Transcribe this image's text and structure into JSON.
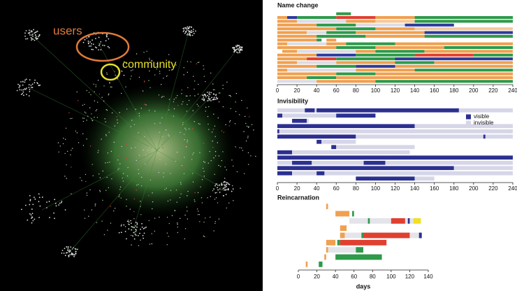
{
  "chart_data": [
    {
      "type": "network",
      "annotations": [
        {
          "text": "users",
          "color": "#e07a3a"
        },
        {
          "text": "community",
          "color": "#e6e02a"
        }
      ]
    },
    {
      "type": "timeline",
      "title": "Name change",
      "xlim": [
        0,
        240
      ],
      "xticks": [
        0,
        20,
        40,
        60,
        80,
        100,
        120,
        140,
        160,
        180,
        200,
        220,
        240
      ],
      "rows": [
        [
          {
            "start": 60,
            "end": 75,
            "color": "#2e9a4a"
          }
        ],
        [
          {
            "start": 0,
            "end": 10,
            "color": "#f0a050"
          },
          {
            "start": 10,
            "end": 20,
            "color": "#2e3b9c"
          },
          {
            "start": 20,
            "end": 60,
            "color": "#2e9a4a"
          },
          {
            "start": 60,
            "end": 100,
            "color": "#e04030"
          },
          {
            "start": 100,
            "end": 140,
            "color": "#f0a050"
          },
          {
            "start": 140,
            "end": 240,
            "color": "#2e9a4a"
          }
        ],
        [
          {
            "start": 0,
            "end": 20,
            "color": "#f0a050"
          },
          {
            "start": 20,
            "end": 70,
            "color": "#dcdce6"
          },
          {
            "start": 70,
            "end": 100,
            "color": "#f0a050"
          },
          {
            "start": 100,
            "end": 140,
            "color": "#f5c89a"
          },
          {
            "start": 140,
            "end": 240,
            "color": "#2e9a4a"
          }
        ],
        [
          {
            "start": 0,
            "end": 40,
            "color": "#f0a050"
          },
          {
            "start": 40,
            "end": 80,
            "color": "#2e9a4a"
          },
          {
            "start": 80,
            "end": 130,
            "color": "#dcdce6"
          },
          {
            "start": 130,
            "end": 180,
            "color": "#2e3b9c"
          }
        ],
        [
          {
            "start": 0,
            "end": 60,
            "color": "#f0a050"
          },
          {
            "start": 60,
            "end": 100,
            "color": "#2e9a4a"
          },
          {
            "start": 100,
            "end": 140,
            "color": "#f0a050"
          },
          {
            "start": 140,
            "end": 240,
            "color": "#f5c89a"
          }
        ],
        [
          {
            "start": 0,
            "end": 30,
            "color": "#f0a050"
          },
          {
            "start": 30,
            "end": 50,
            "color": "#dcdce6"
          },
          {
            "start": 50,
            "end": 80,
            "color": "#2e9a4a"
          },
          {
            "start": 80,
            "end": 150,
            "color": "#f0a050"
          },
          {
            "start": 150,
            "end": 240,
            "color": "#2e3b9c"
          }
        ],
        [
          {
            "start": 0,
            "end": 40,
            "color": "#f0a050"
          },
          {
            "start": 40,
            "end": 90,
            "color": "#2e9a4a"
          },
          {
            "start": 90,
            "end": 150,
            "color": "#f0a050"
          },
          {
            "start": 150,
            "end": 240,
            "color": "#2e9a4a"
          }
        ],
        [
          {
            "start": 0,
            "end": 40,
            "color": "#f0a050"
          },
          {
            "start": 40,
            "end": 45,
            "color": "#2e9a4a"
          },
          {
            "start": 50,
            "end": 60,
            "color": "#f0a050"
          }
        ],
        [
          {
            "start": 0,
            "end": 10,
            "color": "#f0a050"
          },
          {
            "start": 10,
            "end": 50,
            "color": "#dcdce6"
          },
          {
            "start": 50,
            "end": 70,
            "color": "#f0a050"
          },
          {
            "start": 70,
            "end": 120,
            "color": "#2e9a4a"
          },
          {
            "start": 120,
            "end": 240,
            "color": "#f0a050"
          }
        ],
        [
          {
            "start": 0,
            "end": 60,
            "color": "#f0a050"
          },
          {
            "start": 60,
            "end": 100,
            "color": "#2e9a4a"
          },
          {
            "start": 100,
            "end": 170,
            "color": "#f0a050"
          },
          {
            "start": 170,
            "end": 240,
            "color": "#2e9a4a"
          }
        ],
        [
          {
            "start": 5,
            "end": 20,
            "color": "#f0a050"
          },
          {
            "start": 20,
            "end": 80,
            "color": "#dcdce6"
          },
          {
            "start": 80,
            "end": 100,
            "color": "#f0a050"
          },
          {
            "start": 100,
            "end": 150,
            "color": "#2e9a4a"
          },
          {
            "start": 150,
            "end": 240,
            "color": "#f0a050"
          }
        ],
        [
          {
            "start": 0,
            "end": 40,
            "color": "#f0a050"
          },
          {
            "start": 40,
            "end": 80,
            "color": "#2e3b9c"
          },
          {
            "start": 80,
            "end": 140,
            "color": "#2e9a4a"
          },
          {
            "start": 140,
            "end": 200,
            "color": "#e04030"
          },
          {
            "start": 200,
            "end": 240,
            "color": "#2e9a4a"
          }
        ],
        [
          {
            "start": 0,
            "end": 30,
            "color": "#f0a050"
          },
          {
            "start": 30,
            "end": 60,
            "color": "#e04030"
          },
          {
            "start": 60,
            "end": 120,
            "color": "#2e9a4a"
          },
          {
            "start": 120,
            "end": 240,
            "color": "#2e3b9c"
          }
        ],
        [
          {
            "start": 0,
            "end": 20,
            "color": "#f0a050"
          },
          {
            "start": 20,
            "end": 60,
            "color": "#dcdce6"
          },
          {
            "start": 60,
            "end": 120,
            "color": "#f0a050"
          },
          {
            "start": 120,
            "end": 160,
            "color": "#2e9a4a"
          },
          {
            "start": 160,
            "end": 240,
            "color": "#f0a050"
          }
        ],
        [
          {
            "start": 0,
            "end": 40,
            "color": "#f0a050"
          },
          {
            "start": 40,
            "end": 80,
            "color": "#2e9a4a"
          },
          {
            "start": 80,
            "end": 120,
            "color": "#2e3b9c"
          },
          {
            "start": 120,
            "end": 240,
            "color": "#f0a050"
          }
        ],
        [
          {
            "start": 0,
            "end": 10,
            "color": "#f0a050"
          },
          {
            "start": 10,
            "end": 80,
            "color": "#dcdce6"
          },
          {
            "start": 80,
            "end": 140,
            "color": "#f0a050"
          },
          {
            "start": 140,
            "end": 240,
            "color": "#2e9a4a"
          }
        ],
        [
          {
            "start": 0,
            "end": 60,
            "color": "#f0a050"
          },
          {
            "start": 60,
            "end": 100,
            "color": "#2e9a4a"
          },
          {
            "start": 100,
            "end": 240,
            "color": "#f0a050"
          }
        ],
        [
          {
            "start": 0,
            "end": 30,
            "color": "#f0a050"
          },
          {
            "start": 30,
            "end": 60,
            "color": "#2e9a4a"
          },
          {
            "start": 60,
            "end": 240,
            "color": "#f0a050"
          }
        ],
        [
          {
            "start": 0,
            "end": 40,
            "color": "#dcdce6"
          },
          {
            "start": 40,
            "end": 100,
            "color": "#f0a050"
          },
          {
            "start": 100,
            "end": 240,
            "color": "#2e9a4a"
          }
        ]
      ]
    },
    {
      "type": "timeline",
      "title": "Invisibility",
      "xlim": [
        0,
        240
      ],
      "xticks": [
        0,
        20,
        40,
        60,
        80,
        100,
        120,
        140,
        160,
        180,
        200,
        220,
        240
      ],
      "legend": [
        {
          "name": "visible",
          "color": "#2b3090"
        },
        {
          "name": "invisible",
          "color": "#d6d6e8"
        }
      ],
      "rows": [
        [
          {
            "start": 0,
            "end": 240,
            "color": "#d6d6e8"
          },
          {
            "start": 28,
            "end": 38,
            "color": "#2b3090"
          },
          {
            "start": 40,
            "end": 185,
            "color": "#2b3090"
          }
        ],
        [
          {
            "start": 0,
            "end": 100,
            "color": "#d6d6e8"
          },
          {
            "start": 0,
            "end": 5,
            "color": "#2b3090"
          },
          {
            "start": 60,
            "end": 100,
            "color": "#2b3090"
          }
        ],
        [
          {
            "start": 15,
            "end": 30,
            "color": "#2b3090"
          },
          {
            "start": 30,
            "end": 32,
            "color": "#d6d6e8"
          }
        ],
        [
          {
            "start": 0,
            "end": 140,
            "color": "#2b3090"
          },
          {
            "start": 140,
            "end": 240,
            "color": "#d6d6e8"
          }
        ],
        [
          {
            "start": 0,
            "end": 2,
            "color": "#2b3090"
          },
          {
            "start": 2,
            "end": 240,
            "color": "#d6d6e8"
          }
        ],
        [
          {
            "start": 0,
            "end": 80,
            "color": "#2b3090"
          },
          {
            "start": 80,
            "end": 240,
            "color": "#d6d6e8"
          },
          {
            "start": 210,
            "end": 212,
            "color": "#2b3090"
          }
        ],
        [
          {
            "start": 40,
            "end": 45,
            "color": "#2b3090"
          },
          {
            "start": 45,
            "end": 80,
            "color": "#d6d6e8"
          }
        ],
        [
          {
            "start": 55,
            "end": 60,
            "color": "#2b3090"
          },
          {
            "start": 60,
            "end": 140,
            "color": "#d6d6e8"
          }
        ],
        [
          {
            "start": 0,
            "end": 15,
            "color": "#2b3090"
          },
          {
            "start": 15,
            "end": 135,
            "color": "#d6d6e8"
          }
        ],
        [
          {
            "start": 0,
            "end": 240,
            "color": "#2b3090"
          }
        ],
        [
          {
            "start": 0,
            "end": 240,
            "color": "#d6d6e8"
          },
          {
            "start": 15,
            "end": 35,
            "color": "#2b3090"
          },
          {
            "start": 88,
            "end": 110,
            "color": "#2b3090"
          }
        ],
        [
          {
            "start": 0,
            "end": 180,
            "color": "#2b3090"
          },
          {
            "start": 180,
            "end": 240,
            "color": "#d6d6e8"
          }
        ],
        [
          {
            "start": 0,
            "end": 15,
            "color": "#2b3090"
          },
          {
            "start": 15,
            "end": 40,
            "color": "#d6d6e8"
          },
          {
            "start": 40,
            "end": 48,
            "color": "#2b3090"
          },
          {
            "start": 48,
            "end": 240,
            "color": "#d6d6e8"
          }
        ],
        [
          {
            "start": 80,
            "end": 140,
            "color": "#2b3090"
          },
          {
            "start": 140,
            "end": 160,
            "color": "#d6d6e8"
          }
        ]
      ]
    },
    {
      "type": "timeline",
      "title": "Reincarnation",
      "xlabel": "days",
      "xlim": [
        0,
        140
      ],
      "xticks": [
        0,
        20,
        40,
        60,
        80,
        100,
        120,
        140
      ],
      "rows": [
        [
          {
            "start": 30,
            "end": 32,
            "color": "#f0a050"
          }
        ],
        [
          {
            "start": 40,
            "end": 55,
            "color": "#f0a050"
          },
          {
            "start": 58,
            "end": 60,
            "color": "#2e9a4a"
          }
        ],
        [
          {
            "start": 55,
            "end": 130,
            "color": "#e4e4ea"
          },
          {
            "start": 75,
            "end": 77,
            "color": "#2e9a4a"
          },
          {
            "start": 100,
            "end": 115,
            "color": "#e04030"
          },
          {
            "start": 118,
            "end": 120,
            "color": "#2b3090"
          },
          {
            "start": 124,
            "end": 132,
            "color": "#f2e020"
          }
        ],
        [
          {
            "start": 45,
            "end": 52,
            "color": "#f0a050"
          }
        ],
        [
          {
            "start": 45,
            "end": 130,
            "color": "#e4e4ea"
          },
          {
            "start": 45,
            "end": 50,
            "color": "#f0a050"
          },
          {
            "start": 68,
            "end": 70,
            "color": "#2e9a4a"
          },
          {
            "start": 70,
            "end": 120,
            "color": "#e04030"
          },
          {
            "start": 130,
            "end": 133,
            "color": "#2b3090"
          }
        ],
        [
          {
            "start": 30,
            "end": 40,
            "color": "#f0a050"
          },
          {
            "start": 42,
            "end": 45,
            "color": "#2e9a4a"
          },
          {
            "start": 45,
            "end": 95,
            "color": "#e04030"
          }
        ],
        [
          {
            "start": 30,
            "end": 62,
            "color": "#e4e4ea"
          },
          {
            "start": 30,
            "end": 32,
            "color": "#f0a050"
          },
          {
            "start": 62,
            "end": 70,
            "color": "#2e9a4a"
          }
        ],
        [
          {
            "start": 28,
            "end": 30,
            "color": "#f0a050"
          },
          {
            "start": 40,
            "end": 90,
            "color": "#2e9a4a"
          }
        ],
        [
          {
            "start": 8,
            "end": 10,
            "color": "#f0a050"
          },
          {
            "start": 22,
            "end": 26,
            "color": "#2e9a4a"
          }
        ]
      ]
    }
  ]
}
